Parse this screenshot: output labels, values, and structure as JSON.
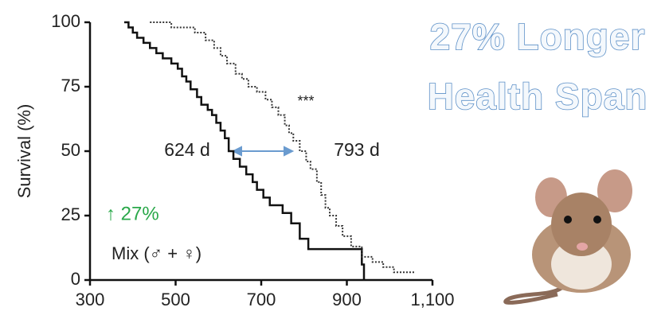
{
  "chart_data": {
    "type": "step",
    "headline": [
      "27% Longer",
      "Health Span"
    ],
    "y_label": "Survival (%)",
    "annotations": {
      "significance": "***",
      "control_median": "624 d",
      "treated_median": "793 d",
      "increase": "↑ 27%",
      "group": "Mix (♂ + ♀)"
    },
    "xlim": [
      300,
      1100
    ],
    "ylim": [
      0,
      100
    ],
    "xticks": [
      300,
      500,
      700,
      900,
      {
        "value": 1100,
        "label": "1,100"
      }
    ],
    "yticks": [
      0,
      25,
      50,
      75,
      100
    ],
    "series": [
      {
        "style": "solid",
        "color": "#111111",
        "x": [
          380,
          390,
          400,
          410,
          425,
          440,
          455,
          470,
          490,
          505,
          515,
          525,
          535,
          550,
          560,
          575,
          585,
          595,
          605,
          615,
          624,
          635,
          650,
          665,
          680,
          690,
          705,
          720,
          750,
          770,
          790,
          810,
          930,
          935,
          940
        ],
        "values": [
          100,
          98,
          96,
          94,
          92,
          90,
          88,
          86,
          84,
          82,
          79,
          77,
          74,
          71,
          68,
          66,
          64,
          61,
          58,
          55,
          50,
          47,
          44,
          41,
          38,
          35,
          32,
          29,
          26,
          22,
          16,
          12,
          12,
          6,
          0
        ]
      },
      {
        "style": "dotted",
        "color": "#333333",
        "x": [
          440,
          490,
          545,
          570,
          590,
          605,
          620,
          640,
          655,
          670,
          690,
          710,
          725,
          740,
          755,
          765,
          775,
          790,
          805,
          815,
          830,
          840,
          850,
          860,
          875,
          890,
          910,
          935,
          960,
          985,
          1010,
          1060
        ],
        "values": [
          100,
          98,
          96,
          93,
          90,
          87,
          84,
          80,
          78,
          75,
          73,
          70,
          67,
          64,
          60,
          57,
          54,
          50,
          46,
          43,
          38,
          33,
          28,
          25,
          21,
          17,
          13,
          9,
          7,
          5,
          3,
          3
        ]
      }
    ]
  }
}
